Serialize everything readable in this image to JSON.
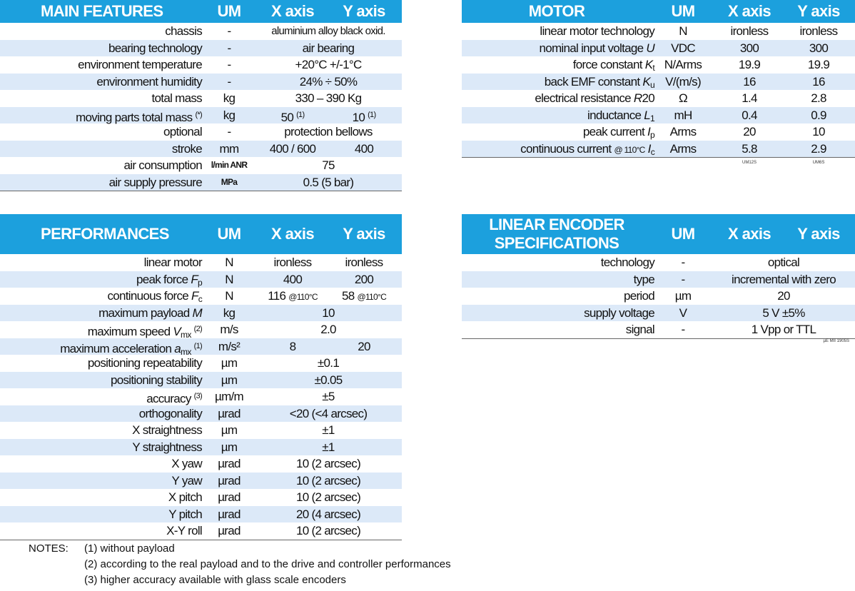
{
  "main_features": {
    "header": [
      "MAIN FEATURES",
      "UM",
      "X axis",
      "Y axis"
    ],
    "rows": [
      {
        "label": "chassis",
        "um": "-",
        "value": "aluminium alloy black oxid."
      },
      {
        "label": "bearing technology",
        "um": "-",
        "value": "air bearing"
      },
      {
        "label": "environment temperature",
        "um": "-",
        "value": "+20°C +/-1°C"
      },
      {
        "label": "environment humidity",
        "um": "-",
        "value": "24% ÷ 50%"
      },
      {
        "label": "total mass",
        "um": "kg",
        "value": "330 – 390 Kg"
      },
      {
        "label": "moving parts total mass",
        "note": "(*)",
        "um": "kg",
        "x": "50",
        "x_note": "(1)",
        "y": "10",
        "y_note": "(1)"
      },
      {
        "label": "optional",
        "um": "-",
        "value": "protection bellows"
      },
      {
        "label": "stroke",
        "um": "mm",
        "x": "400 / 600",
        "y": "400"
      },
      {
        "label": "air consumption",
        "um": "l/min ANR",
        "um_small": true,
        "value": "75"
      },
      {
        "label": "air supply pressure",
        "um": "MPa",
        "um_small": true,
        "value": "0.5 (5 bar)"
      }
    ]
  },
  "motor": {
    "header": [
      "MOTOR",
      "UM",
      "X axis",
      "Y axis"
    ],
    "rows": [
      {
        "label": "linear motor technology",
        "um": "N",
        "x": "ironless",
        "y": "ironless"
      },
      {
        "label": "nominal input voltage",
        "symbol": "U",
        "um": "VDC",
        "x": "300",
        "y": "300"
      },
      {
        "label": "force constant",
        "symbol": "K",
        "sub": "t",
        "um": "N/Arms",
        "x": "19.9",
        "y": "19.9"
      },
      {
        "label": "back EMF constant",
        "symbol": "K",
        "sub": "u",
        "um": "V/(m/s)",
        "x": "16",
        "y": "16"
      },
      {
        "label": "electrical resistance",
        "symbol": "R",
        "suffix": "20",
        "um": "Ω",
        "x": "1.4",
        "y": "2.8"
      },
      {
        "label": "inductance",
        "symbol": "L",
        "sub": "1",
        "um": "mH",
        "x": "0.4",
        "y": "0.9"
      },
      {
        "label": "peak current",
        "symbol": "I",
        "sub": "p",
        "um": "Arms",
        "x": "20",
        "y": "10"
      },
      {
        "label": "continuous current",
        "cond": "@ 110°C",
        "symbol": "I",
        "sub": "c",
        "um": "Arms",
        "x": "5.8",
        "y": "2.9"
      }
    ],
    "codes": {
      "x": "UM12S",
      "y": "UM6S"
    }
  },
  "performances": {
    "header": [
      "PERFORMANCES",
      "UM",
      "X axis",
      "Y axis"
    ],
    "rows": [
      {
        "label": "linear motor",
        "um": "N",
        "x": "ironless",
        "y": "ironless"
      },
      {
        "label": "peak force",
        "symbol": "F",
        "sub": "p",
        "um": "N",
        "x": "400",
        "y": "200"
      },
      {
        "label": "continuous force",
        "symbol": "F",
        "sub": "c",
        "um": "N",
        "x": "116",
        "x_cond": "@110°C",
        "y": "58",
        "y_cond": "@110°C"
      },
      {
        "label": "maximum payload",
        "symbol": "M",
        "um": "kg",
        "value": "10"
      },
      {
        "label": "maximum speed",
        "symbol": "V",
        "sub": "mx",
        "note": "(2)",
        "um": "m/s",
        "value": "2.0"
      },
      {
        "label": "maximum acceleration",
        "symbol": "a",
        "sub": "mx",
        "note": "(1)",
        "um": "m/s²",
        "x": "8",
        "y": "20"
      },
      {
        "label": "positioning repeatability",
        "um": "µm",
        "value": "±0.1"
      },
      {
        "label": "positioning stability",
        "um": "µm",
        "value": "±0.05"
      },
      {
        "label": "accuracy",
        "note": "(3)",
        "um": "µm/m",
        "value": "±5"
      },
      {
        "label": "orthogonality",
        "um": "µrad",
        "value": "<20 (<4 arcsec)"
      },
      {
        "label": "X straightness",
        "um": "µm",
        "value": "±1"
      },
      {
        "label": "Y straightness",
        "um": "µm",
        "value": "±1"
      },
      {
        "label": "X yaw",
        "um": "µrad",
        "value": "10 (2 arcsec)"
      },
      {
        "label": "Y yaw",
        "um": "µrad",
        "value": "10 (2 arcsec)"
      },
      {
        "label": "X pitch",
        "um": "µrad",
        "value": "10 (2 arcsec)"
      },
      {
        "label": "Y pitch",
        "um": "µrad",
        "value": "20 (4 arcsec)"
      },
      {
        "label": "X-Y roll",
        "um": "µrad",
        "value": "10 (2 arcsec)"
      }
    ]
  },
  "encoder": {
    "header": [
      "LINEAR ENCODER SPECIFICATIONS",
      "UM",
      "X axis",
      "Y axis"
    ],
    "rows": [
      {
        "label": "technology",
        "um": "-",
        "value": "optical"
      },
      {
        "label": "type",
        "um": "-",
        "value": "incremental with zero"
      },
      {
        "label": "period",
        "um": "µm",
        "value": "20"
      },
      {
        "label": "supply voltage",
        "um": "V",
        "value": "5 V ±5%"
      },
      {
        "label": "signal",
        "um": "-",
        "value": "1 Vpp or TTL"
      }
    ],
    "code": "µE MII 1905S"
  },
  "notes": {
    "title": "NOTES:",
    "items": [
      "(1) without payload",
      "(2) according to the real payload and to the drive and controller performances",
      "(3) higher accuracy available with glass scale encoders"
    ]
  }
}
